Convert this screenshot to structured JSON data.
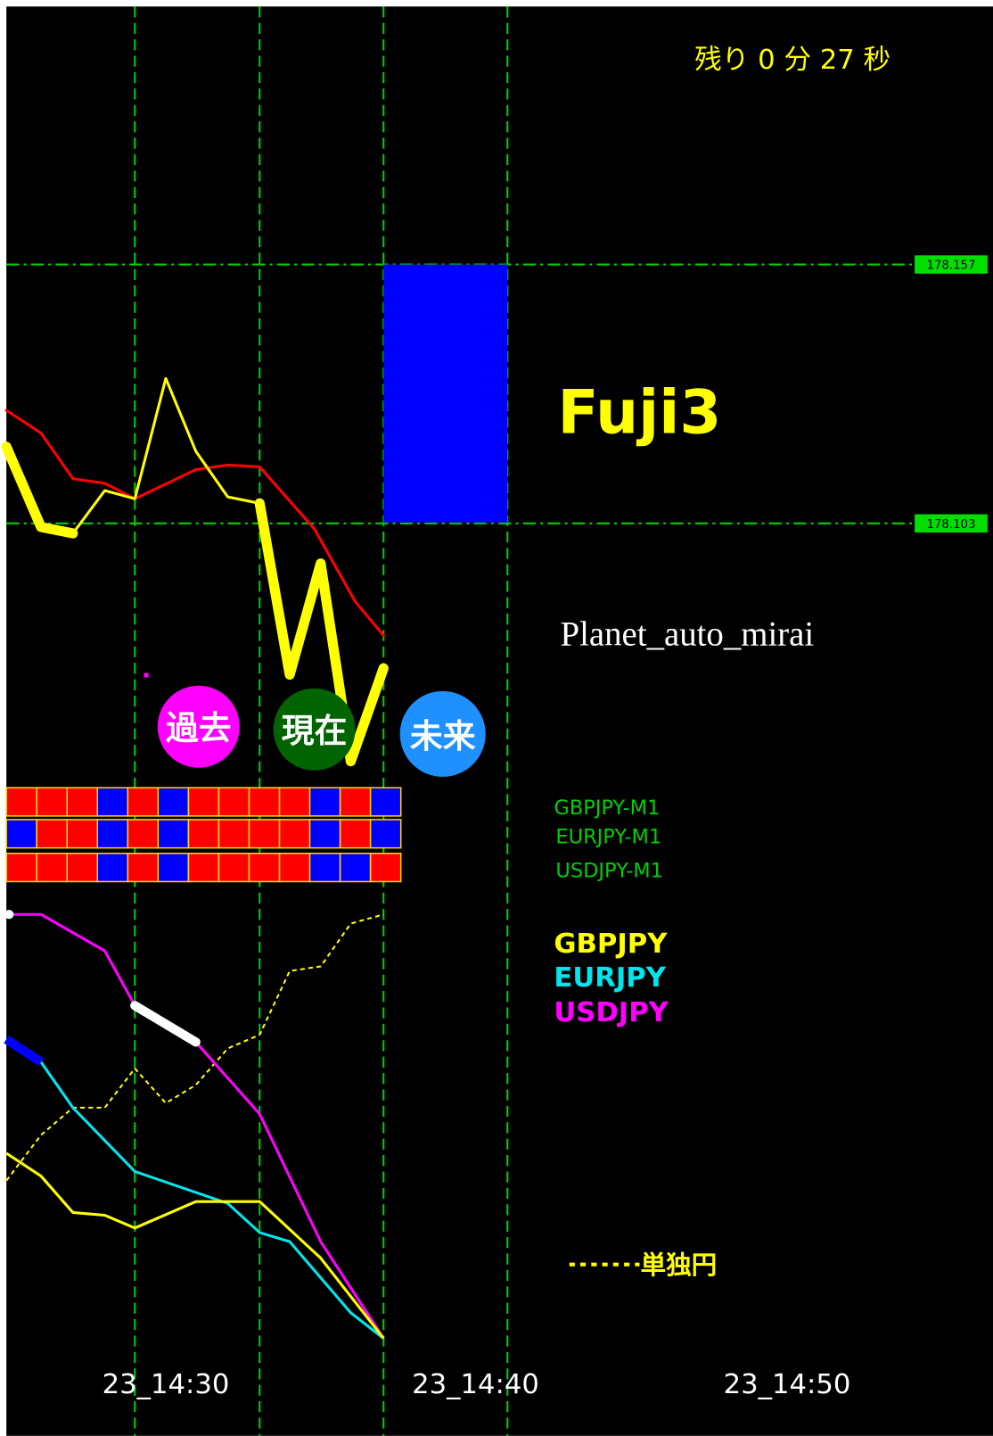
{
  "timer": "残り 0 分 27 秒",
  "price_labels": [
    "178.157",
    "178.103"
  ],
  "title": "Fuji3",
  "subtitle": "Planet_auto_mirai",
  "buttons": [
    "過去",
    "現在",
    "未来"
  ],
  "strength_rows": [
    "GBPJPY-M1",
    "EURJPY-M1",
    "USDJPY-M1"
  ],
  "legend": [
    "GBPJPY",
    "EURJPY",
    "USDJPY"
  ],
  "dotted_legend": "単独円",
  "time_labels": [
    "23_14:30",
    "23_14:40",
    "23_14:50"
  ]
}
